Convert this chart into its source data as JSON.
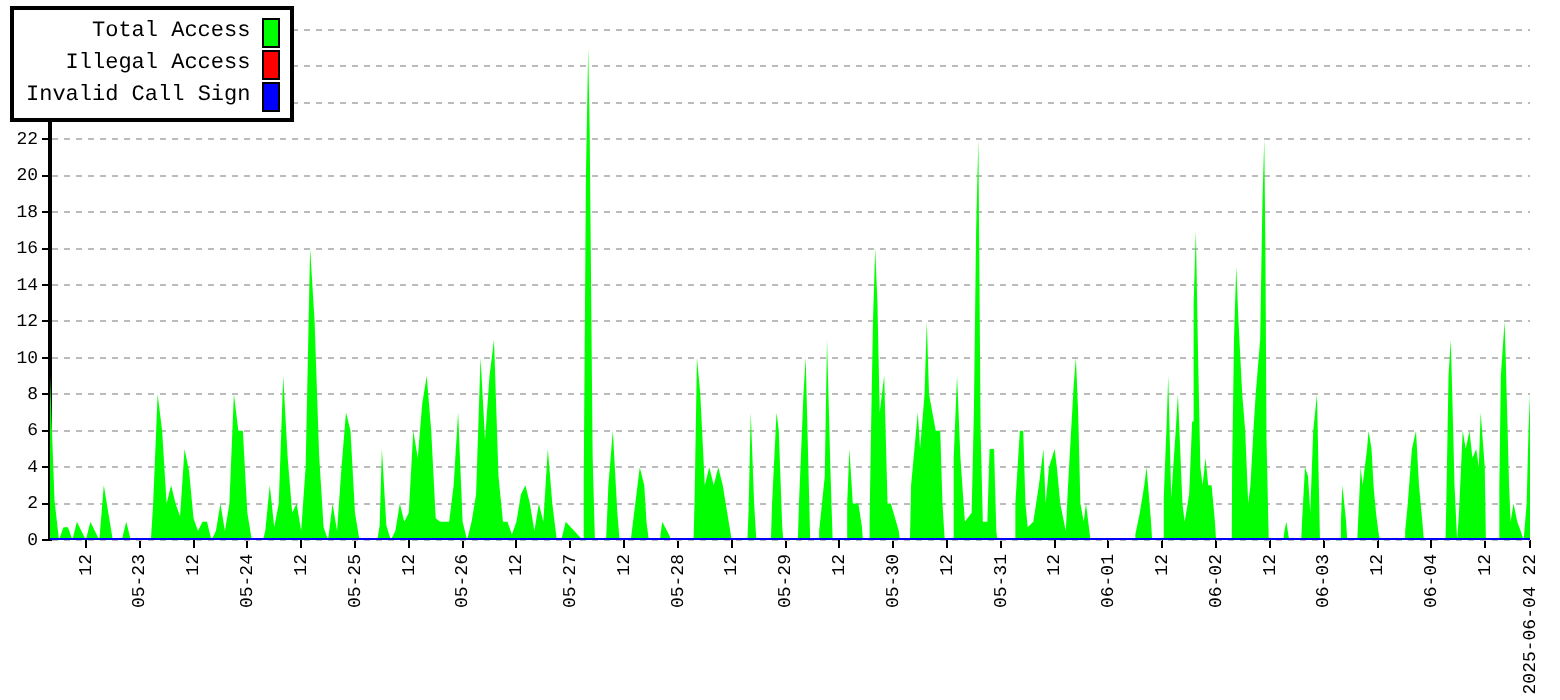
{
  "chart_data": {
    "type": "area",
    "xlim": [
      "2025-05-22T04:00",
      "2025-06-04T22:00"
    ],
    "xticks": [
      {
        "value": "2025-05-22T12:00",
        "label": "12"
      },
      {
        "value": "2025-05-23T00:00",
        "label": "05-23"
      },
      {
        "value": "2025-05-23T12:00",
        "label": "12"
      },
      {
        "value": "2025-05-24T00:00",
        "label": "05-24"
      },
      {
        "value": "2025-05-24T12:00",
        "label": "12"
      },
      {
        "value": "2025-05-25T00:00",
        "label": "05-25"
      },
      {
        "value": "2025-05-25T12:00",
        "label": "12"
      },
      {
        "value": "2025-05-26T00:00",
        "label": "05-26"
      },
      {
        "value": "2025-05-26T12:00",
        "label": "12"
      },
      {
        "value": "2025-05-27T00:00",
        "label": "05-27"
      },
      {
        "value": "2025-05-27T12:00",
        "label": "12"
      },
      {
        "value": "2025-05-28T00:00",
        "label": "05-28"
      },
      {
        "value": "2025-05-28T12:00",
        "label": "12"
      },
      {
        "value": "2025-05-29T00:00",
        "label": "05-29"
      },
      {
        "value": "2025-05-29T12:00",
        "label": "12"
      },
      {
        "value": "2025-05-30T00:00",
        "label": "05-30"
      },
      {
        "value": "2025-05-30T12:00",
        "label": "12"
      },
      {
        "value": "2025-05-31T00:00",
        "label": "05-31"
      },
      {
        "value": "2025-05-31T12:00",
        "label": "12"
      },
      {
        "value": "2025-06-01T00:00",
        "label": "06-01"
      },
      {
        "value": "2025-06-01T12:00",
        "label": "12"
      },
      {
        "value": "2025-06-02T00:00",
        "label": "06-02"
      },
      {
        "value": "2025-06-02T12:00",
        "label": "12"
      },
      {
        "value": "2025-06-03T00:00",
        "label": "06-03"
      },
      {
        "value": "2025-06-03T12:00",
        "label": "12"
      },
      {
        "value": "2025-06-04T00:00",
        "label": "06-04"
      },
      {
        "value": "2025-06-04T12:00",
        "label": "12"
      },
      {
        "value": "2025-06-04T22:00",
        "label": "2025-06-04 22"
      }
    ],
    "ylim": [
      0,
      28
    ],
    "yticks": [
      0,
      2,
      4,
      6,
      8,
      10,
      12,
      14,
      16,
      18,
      20,
      22,
      {
        "value": 24,
        "label": null
      },
      {
        "value": 26,
        "label": null
      },
      {
        "value": 28,
        "label": null
      }
    ],
    "grid": "y",
    "legend": "top left",
    "marker": "none",
    "series": [
      {
        "name": "Total Access",
        "color": "#00ff00",
        "x": [
          "2025-05-22T04:00",
          "2025-05-22T05:00",
          "2025-05-22T06:00",
          "2025-05-22T07:00",
          "2025-05-22T08:00",
          "2025-05-22T09:00",
          "2025-05-22T10:00",
          "2025-05-22T11:00",
          "2025-05-22T12:00",
          "2025-05-22T13:00",
          "2025-05-22T14:00",
          "2025-05-22T15:00",
          "2025-05-22T16:00",
          "2025-05-22T17:00",
          "2025-05-22T18:00",
          "2025-05-22T20:00",
          "2025-05-22T21:00",
          "2025-05-22T22:00",
          "2025-05-23T02:30",
          "2025-05-23T03:00",
          "2025-05-23T04:00",
          "2025-05-23T05:00",
          "2025-05-23T06:00",
          "2025-05-23T07:00",
          "2025-05-23T08:00",
          "2025-05-23T09:00",
          "2025-05-23T10:00",
          "2025-05-23T11:00",
          "2025-05-23T12:00",
          "2025-05-23T13:00",
          "2025-05-23T14:00",
          "2025-05-23T15:00",
          "2025-05-23T16:00",
          "2025-05-23T17:00",
          "2025-05-23T18:00",
          "2025-05-23T19:00",
          "2025-05-23T20:00",
          "2025-05-23T21:00",
          "2025-05-23T22:00",
          "2025-05-23T23:00",
          "2025-05-24T00:00",
          "2025-05-24T01:00",
          "2025-05-24T03:30",
          "2025-05-24T04:00",
          "2025-05-24T05:00",
          "2025-05-24T06:00",
          "2025-05-24T07:00",
          "2025-05-24T08:00",
          "2025-05-24T09:00",
          "2025-05-24T10:00",
          "2025-05-24T11:00",
          "2025-05-24T12:00",
          "2025-05-24T13:00",
          "2025-05-24T14:00",
          "2025-05-24T15:00",
          "2025-05-24T16:00",
          "2025-05-24T17:00",
          "2025-05-24T18:00",
          "2025-05-24T19:00",
          "2025-05-24T20:00",
          "2025-05-24T21:00",
          "2025-05-24T22:00",
          "2025-05-24T23:00",
          "2025-05-25T00:00",
          "2025-05-25T01:00",
          "2025-05-25T05:00",
          "2025-05-25T05:30",
          "2025-05-25T06:00",
          "2025-05-25T07:00",
          "2025-05-25T08:00",
          "2025-05-25T09:00",
          "2025-05-25T10:00",
          "2025-05-25T11:00",
          "2025-05-25T12:00",
          "2025-05-25T13:00",
          "2025-05-25T14:00",
          "2025-05-25T15:00",
          "2025-05-25T16:00",
          "2025-05-25T17:00",
          "2025-05-25T18:00",
          "2025-05-25T19:00",
          "2025-05-25T20:00",
          "2025-05-25T21:00",
          "2025-05-25T22:00",
          "2025-05-25T23:00",
          "2025-05-26T00:00",
          "2025-05-26T01:00",
          "2025-05-26T02:00",
          "2025-05-26T03:00",
          "2025-05-26T04:00",
          "2025-05-26T05:00",
          "2025-05-26T06:00",
          "2025-05-26T07:00",
          "2025-05-26T08:00",
          "2025-05-26T09:00",
          "2025-05-26T10:00",
          "2025-05-26T11:00",
          "2025-05-26T12:00",
          "2025-05-26T13:00",
          "2025-05-26T14:00",
          "2025-05-26T15:00",
          "2025-05-26T16:00",
          "2025-05-26T17:00",
          "2025-05-26T18:00",
          "2025-05-26T19:00",
          "2025-05-26T20:00",
          "2025-05-26T21:00",
          "2025-05-26T22:00",
          "2025-05-26T23:00",
          "2025-05-27T02:45",
          "2025-05-27T03:00",
          "2025-05-27T03:30",
          "2025-05-27T04:00",
          "2025-05-27T04:20",
          "2025-05-27T04:40",
          "2025-05-27T05:00",
          "2025-05-27T05:30",
          "2025-05-27T08:00",
          "2025-05-27T08:30",
          "2025-05-27T09:30",
          "2025-05-27T10:30",
          "2025-05-27T11:00",
          "2025-05-27T13:30",
          "2025-05-27T14:00",
          "2025-05-27T15:30",
          "2025-05-27T16:30",
          "2025-05-27T17:00",
          "2025-05-27T17:30",
          "2025-05-27T20:00",
          "2025-05-27T20:30",
          "2025-05-27T22:00",
          "2025-05-27T22:30",
          "2025-05-28T03:30",
          "2025-05-28T03:45",
          "2025-05-28T04:15",
          "2025-05-28T05:00",
          "2025-05-28T06:00",
          "2025-05-28T07:00",
          "2025-05-28T08:00",
          "2025-05-28T09:00",
          "2025-05-28T10:00",
          "2025-05-28T11:00",
          "2025-05-28T12:00",
          "2025-05-28T15:30",
          "2025-05-28T15:45",
          "2025-05-28T16:15",
          "2025-05-28T17:00",
          "2025-05-28T17:30",
          "2025-05-28T20:45",
          "2025-05-28T21:00",
          "2025-05-28T22:00",
          "2025-05-28T22:30",
          "2025-05-28T23:15",
          "2025-05-28T23:30",
          "2025-05-29T02:45",
          "2025-05-29T03:00",
          "2025-05-29T04:00",
          "2025-05-29T04:30",
          "2025-05-29T05:15",
          "2025-05-29T05:30",
          "2025-05-29T07:15",
          "2025-05-29T07:30",
          "2025-05-29T08:45",
          "2025-05-29T09:15",
          "2025-05-29T10:00",
          "2025-05-29T10:30",
          "2025-05-29T13:30",
          "2025-05-29T13:45",
          "2025-05-29T14:15",
          "2025-05-29T15:00",
          "2025-05-29T16:15",
          "2025-05-29T17:00",
          "2025-05-29T17:15",
          "2025-05-29T18:30",
          "2025-05-29T18:45",
          "2025-05-29T19:00",
          "2025-05-29T19:30",
          "2025-05-29T20:00",
          "2025-05-29T20:30",
          "2025-05-29T21:00",
          "2025-05-29T22:00",
          "2025-05-29T22:45",
          "2025-05-29T23:30",
          "2025-05-30T01:15",
          "2025-05-30T01:30",
          "2025-05-30T03:45",
          "2025-05-30T04:00",
          "2025-05-30T05:30",
          "2025-05-30T06:00",
          "2025-05-30T07:00",
          "2025-05-30T07:30",
          "2025-05-30T08:00",
          "2025-05-30T09:30",
          "2025-05-30T10:30",
          "2025-05-30T11:00",
          "2025-05-30T11:30",
          "2025-05-30T13:15",
          "2025-05-30T13:30",
          "2025-05-30T14:15",
          "2025-05-30T15:00",
          "2025-05-30T16:00",
          "2025-05-30T17:30",
          "2025-05-30T18:00",
          "2025-05-30T18:30",
          "2025-05-30T19:00",
          "2025-05-30T19:30",
          "2025-05-30T20:00",
          "2025-05-30T21:00",
          "2025-05-30T21:30",
          "2025-05-30T22:30",
          "2025-05-30T23:00",
          "2025-05-30T23:15",
          "2025-05-31T03:00",
          "2025-05-31T03:15",
          "2025-05-31T04:15",
          "2025-05-31T05:00",
          "2025-05-31T05:30",
          "2025-05-31T06:00",
          "2025-05-31T07:15",
          "2025-05-31T08:30",
          "2025-05-31T09:30",
          "2025-05-31T10:00",
          "2025-05-31T10:45",
          "2025-05-31T12:00",
          "2025-05-31T12:30",
          "2025-05-31T13:15",
          "2025-05-31T14:30",
          "2025-05-31T15:00",
          "2025-05-31T16:15",
          "2025-05-31T16:45",
          "2025-05-31T17:15",
          "2025-05-31T17:45",
          "2025-05-31T18:30",
          "2025-05-31T19:00",
          "2025-05-31T19:30",
          "2025-05-31T20:00",
          "2025-06-01T05:45",
          "2025-06-01T06:00",
          "2025-06-01T07:00",
          "2025-06-01T08:00",
          "2025-06-01T08:30",
          "2025-06-01T09:30",
          "2025-06-01T09:45",
          "2025-06-01T12:15",
          "2025-06-01T12:20",
          "2025-06-01T13:00",
          "2025-06-01T13:20",
          "2025-06-01T14:00",
          "2025-06-01T15:00",
          "2025-06-01T15:30",
          "2025-06-01T16:30",
          "2025-06-01T17:00",
          "2025-06-01T18:00",
          "2025-06-01T18:40",
          "2025-06-01T19:00",
          "2025-06-01T19:30",
          "2025-06-01T20:00",
          "2025-06-01T20:30",
          "2025-06-01T21:00",
          "2025-06-01T21:40",
          "2025-06-01T22:15",
          "2025-06-01T23:00",
          "2025-06-01T23:45",
          "2025-06-02T00:00",
          "2025-06-02T03:30",
          "2025-06-02T03:35",
          "2025-06-02T04:00",
          "2025-06-02T04:30",
          "2025-06-02T05:00",
          "2025-06-02T05:50",
          "2025-06-02T06:30",
          "2025-06-02T07:10",
          "2025-06-02T07:40",
          "2025-06-02T08:20",
          "2025-06-02T08:50",
          "2025-06-02T09:50",
          "2025-06-02T10:20",
          "2025-06-02T10:45",
          "2025-06-02T11:00",
          "2025-06-02T11:15",
          "2025-06-02T11:45",
          "2025-06-02T15:00",
          "2025-06-02T15:15",
          "2025-06-02T15:40",
          "2025-06-02T16:10",
          "2025-06-02T16:20",
          "2025-06-02T19:00",
          "2025-06-02T19:10",
          "2025-06-02T19:50",
          "2025-06-02T20:30",
          "2025-06-02T21:00",
          "2025-06-02T21:40",
          "2025-06-02T22:30",
          "2025-06-02T23:10",
          "2025-06-03T03:40",
          "2025-06-03T03:50",
          "2025-06-03T04:10",
          "2025-06-03T05:00",
          "2025-06-03T05:15",
          "2025-06-03T07:30",
          "2025-06-03T07:40",
          "2025-06-03T08:15",
          "2025-06-03T08:40",
          "2025-06-03T09:40",
          "2025-06-03T10:00",
          "2025-06-03T10:40",
          "2025-06-03T11:10",
          "2025-06-03T11:40",
          "2025-06-03T12:10",
          "2025-06-03T12:30",
          "2025-06-03T18:00",
          "2025-06-03T18:10",
          "2025-06-03T18:45",
          "2025-06-03T19:40",
          "2025-06-03T20:35",
          "2025-06-03T21:15",
          "2025-06-03T22:00",
          "2025-06-03T22:20",
          "2025-06-04T03:10",
          "2025-06-04T03:20",
          "2025-06-04T03:50",
          "2025-06-04T04:20",
          "2025-06-04T04:40",
          "2025-06-04T05:10",
          "2025-06-04T05:45",
          "2025-06-04T06:10",
          "2025-06-04T07:00",
          "2025-06-04T07:40",
          "2025-06-04T08:30",
          "2025-06-04T09:10",
          "2025-06-04T10:00",
          "2025-06-04T10:35",
          "2025-06-04T11:00",
          "2025-06-04T11:55",
          "2025-06-04T12:10",
          "2025-06-04T15:00",
          "2025-06-04T15:10",
          "2025-06-04T15:30",
          "2025-06-04T16:20",
          "2025-06-04T16:35",
          "2025-06-04T17:20",
          "2025-06-04T17:40",
          "2025-06-04T18:20",
          "2025-06-04T19:10",
          "2025-06-04T19:55",
          "2025-06-04T20:35",
          "2025-06-04T21:15",
          "2025-06-04T21:40",
          "2025-06-04T22:00"
        ],
        "values": [
          9,
          2.2,
          0,
          0.7,
          0.7,
          0,
          1,
          0.5,
          0,
          1,
          0.5,
          0,
          3,
          1.5,
          0,
          0,
          1,
          0,
          0,
          2,
          8,
          6,
          2,
          3,
          2,
          1.3,
          5,
          3.8,
          1.2,
          0.5,
          1,
          1,
          0,
          0.5,
          2,
          0.5,
          2,
          8,
          6,
          6,
          1.5,
          0,
          0,
          0.5,
          3,
          0.7,
          2,
          9,
          4.5,
          1.5,
          2,
          0.5,
          4,
          16,
          12,
          4.7,
          0.7,
          0,
          2,
          0.5,
          4,
          7,
          6,
          1.5,
          0,
          0,
          0.8,
          5,
          0.8,
          0,
          0.5,
          2,
          1,
          1.5,
          6,
          4.5,
          7.5,
          9,
          6,
          1.2,
          1,
          1,
          1,
          3,
          7,
          1,
          0,
          1,
          2.5,
          10,
          5.5,
          9,
          11,
          3.5,
          1,
          1,
          0.3,
          1,
          2.5,
          3,
          2,
          0.5,
          2,
          1,
          5,
          2,
          0,
          0,
          1,
          0,
          3,
          20,
          27,
          22.5,
          13.5,
          4.5,
          0,
          0,
          3,
          6,
          1.5,
          0,
          0,
          1,
          4,
          3,
          1,
          0,
          0,
          1,
          0.3,
          0,
          0,
          2.5,
          10,
          8,
          3,
          4,
          3,
          4,
          3,
          1.5,
          0,
          0,
          1.5,
          7,
          2,
          0,
          0,
          2,
          7,
          6,
          0.8,
          0,
          0,
          2,
          8,
          10,
          2.5,
          0,
          0,
          0.5,
          3.5,
          11,
          4,
          0,
          0,
          2,
          5,
          2,
          2,
          0.8,
          0,
          0,
          1,
          5,
          12,
          16,
          13,
          7,
          9,
          2,
          2,
          0.5,
          0,
          0,
          3,
          7,
          5,
          8,
          12,
          8,
          6,
          6,
          2,
          0,
          0,
          4.5,
          9,
          4.5,
          1,
          1.5,
          7,
          17,
          22,
          6,
          1,
          1,
          5,
          5,
          0.5,
          0,
          0,
          2,
          6,
          6,
          2,
          0.7,
          1,
          3,
          5,
          2,
          4,
          5,
          4,
          2,
          0.5,
          3,
          8.5,
          10,
          7,
          2,
          1,
          2,
          1,
          0,
          0,
          0.3,
          1.5,
          3,
          4,
          1,
          0,
          0,
          2.3,
          6.5,
          9,
          2.3,
          6,
          8,
          2,
          1,
          2.5,
          6.5,
          13,
          17,
          10,
          4,
          3,
          4.5,
          3,
          3,
          1,
          0,
          0,
          4,
          11,
          15,
          12,
          8,
          6,
          2,
          3,
          6,
          8,
          11,
          18.5,
          22,
          16,
          5.5,
          0,
          0,
          0.5,
          1,
          0.2,
          0,
          0,
          1,
          4,
          3.5,
          1.5,
          6,
          8,
          0,
          0,
          1,
          3,
          1,
          0,
          0,
          1,
          4,
          3,
          5,
          6,
          5,
          2.8,
          1.5,
          0.5,
          0,
          0,
          0.5,
          2,
          5,
          6,
          3,
          1,
          0,
          0,
          2,
          9,
          11,
          8,
          3,
          0,
          1.5,
          6,
          5,
          6,
          4.5,
          5,
          4,
          7,
          4,
          0,
          0,
          3,
          9,
          12,
          10,
          3,
          1,
          2,
          1,
          0.5,
          0,
          2,
          6,
          8
        ]
      },
      {
        "name": "Illegal Access",
        "color": "#ff0000",
        "type": "line"
      },
      {
        "name": "Invalid Call Sign",
        "color": "#0000ff",
        "type": "line",
        "x": [
          "2025-05-22T04:00",
          "2025-06-04T22:00"
        ],
        "values": [
          0,
          0
        ]
      }
    ]
  }
}
